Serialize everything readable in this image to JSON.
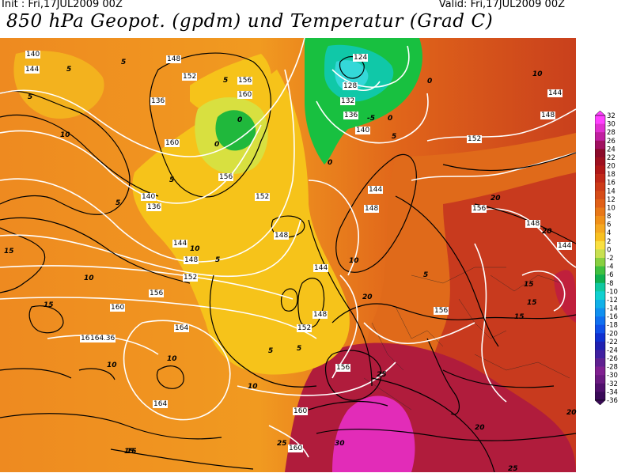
{
  "header": {
    "init": "Init : Fri,17JUL2009 00Z",
    "valid": "Valid: Fri,17JUL2009 00Z",
    "title": "850 hPa Geopot. (gpdm) und Temperatur (Grad C)"
  },
  "map": {
    "geopotential_labels": [
      "140",
      "144",
      "148",
      "152",
      "156",
      "160",
      "136",
      "124",
      "128",
      "132",
      "136",
      "140",
      "144",
      "148",
      "152",
      "156",
      "160",
      "164",
      "164",
      "164",
      "140",
      "144",
      "148",
      "152",
      "156",
      "160",
      "136",
      "144",
      "148",
      "152",
      "156",
      "160",
      "148",
      "152",
      "156",
      "160",
      "148",
      "144",
      "156",
      "148",
      "144",
      "136",
      "164"
    ],
    "temperature_labels": [
      "5",
      "5",
      "5",
      "10",
      "5",
      "5",
      "0",
      "0",
      "0",
      "0",
      "-5",
      "5",
      "0",
      "5",
      "10",
      "5",
      "5",
      "5",
      "10",
      "10",
      "15",
      "10",
      "15",
      "10",
      "10",
      "15",
      "5",
      "15",
      "20",
      "25",
      "20",
      "25",
      "15",
      "20",
      "10",
      "30",
      "20",
      "15",
      "15",
      "20",
      "25"
    ],
    "palette": {
      "lt_m5": "#0fc030",
      "0_5": "#92d050",
      "5_10": "#f5c419",
      "10_15": "#f5a623",
      "15_20": "#e8701a",
      "20_25": "#d24a1e",
      "25_30": "#b41e3c",
      "gt_30": "#e020b4"
    }
  },
  "legend": {
    "labels": [
      "32",
      "30",
      "28",
      "26",
      "24",
      "22",
      "20",
      "18",
      "16",
      "14",
      "12",
      "10",
      "8",
      "6",
      "4",
      "2",
      "0",
      "-2",
      "-4",
      "-6",
      "-8",
      "-10",
      "-12",
      "-14",
      "-16",
      "-18",
      "-20",
      "-22",
      "-24",
      "-26",
      "-28",
      "-30",
      "-32",
      "-34",
      "-36"
    ],
    "colors": [
      "#ff40ff",
      "#e030d0",
      "#c020a0",
      "#a01060",
      "#8b0a2a",
      "#9e1020",
      "#b01818",
      "#c02818",
      "#cc3a18",
      "#d64c18",
      "#e06018",
      "#e87818",
      "#f09018",
      "#f5a820",
      "#f8c020",
      "#fae040",
      "#c8e050",
      "#88d040",
      "#40c040",
      "#10b050",
      "#10c8a0",
      "#10d0d0",
      "#10b0e8",
      "#1090f0",
      "#1070f0",
      "#1050e8",
      "#1030d0",
      "#2020b0",
      "#4020a0",
      "#602090",
      "#802090",
      "#6a1a80",
      "#50106c",
      "#3a0a58"
    ]
  }
}
